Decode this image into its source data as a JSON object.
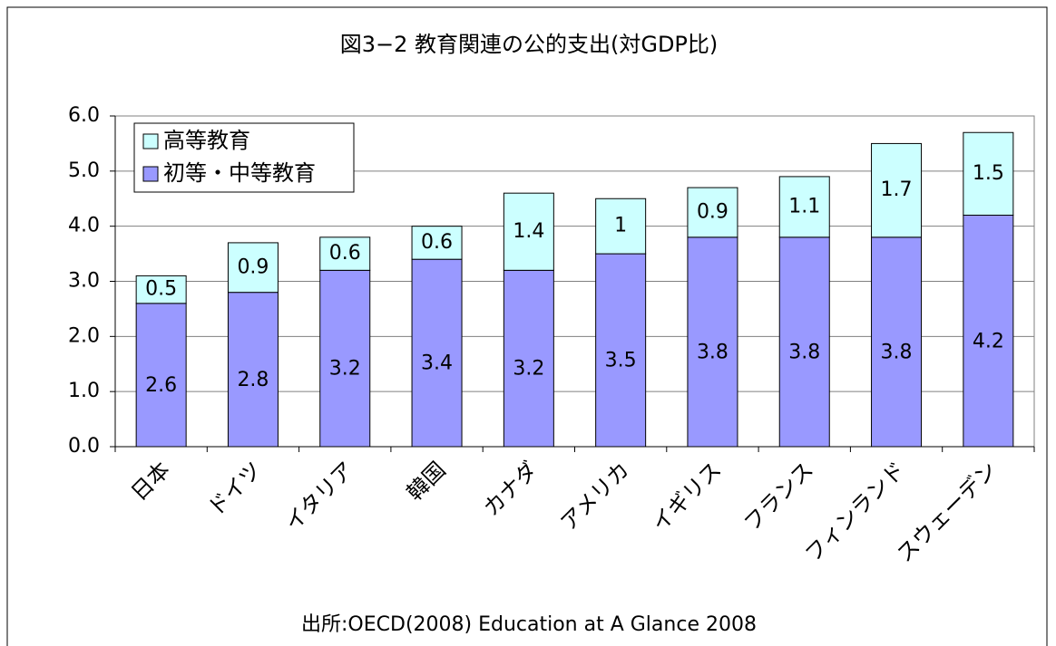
{
  "chart_data": {
    "type": "stacked_bar",
    "title": "図3−2 教育関連の公的支出(対GDP比)",
    "source": "出所:OECD(2008) Education at A Glance 2008",
    "categories": [
      "日本",
      "ドイツ",
      "イタリア",
      "韓国",
      "カナダ",
      "アメリカ",
      "イギリス",
      "フランス",
      "フィンランド",
      "スウェーデン"
    ],
    "series": [
      {
        "name": "初等・中等教育",
        "color": "#9999ff",
        "values": [
          2.6,
          2.8,
          3.2,
          3.4,
          3.2,
          3.5,
          3.8,
          3.8,
          3.8,
          4.2
        ]
      },
      {
        "name": "高等教育",
        "color": "#ccffff",
        "values": [
          0.5,
          0.9,
          0.6,
          0.6,
          1.4,
          1.0,
          0.9,
          1.1,
          1.7,
          1.5
        ]
      }
    ],
    "ylim": [
      0,
      6
    ],
    "yticks": [
      {
        "value": 0,
        "label": "0.0"
      },
      {
        "value": 1,
        "label": "1.0"
      },
      {
        "value": 2,
        "label": "2.0"
      },
      {
        "value": 3,
        "label": "3.0"
      },
      {
        "value": 4,
        "label": "4.0"
      },
      {
        "value": 5,
        "label": "5.0"
      },
      {
        "value": 6,
        "label": "6.0"
      }
    ],
    "grid": true
  }
}
